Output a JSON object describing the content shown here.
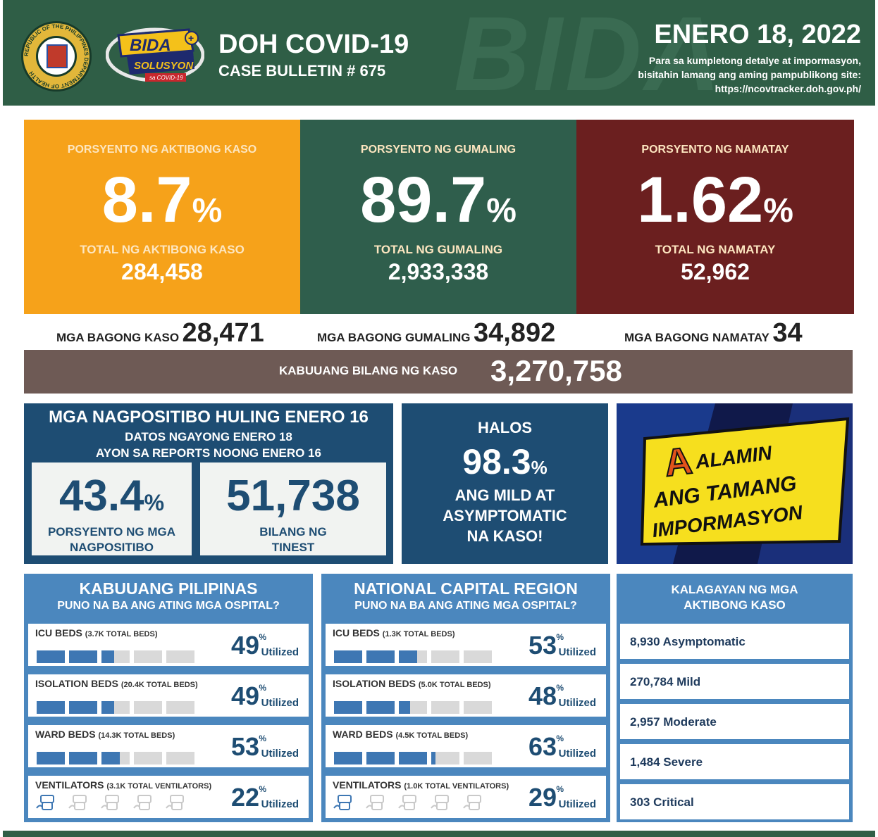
{
  "header": {
    "title": "DOH COVID-19",
    "subtitle": "CASE BULLETIN # 675",
    "date": "ENERO 18, 2022",
    "note_line1": "Para sa kumpletong detalye at impormasyon,",
    "note_line2": "bisitahin lamang ang aming pampublikong site:",
    "note_line3": "https://ncovtracker.doh.gov.ph/",
    "bg_text": "BIDA",
    "logo_bida": "BIDA",
    "logo_solusyon": "SOLUSYON",
    "logo_covid": "sa COVID-19",
    "seal_text": "REPUBLIC OF THE PHILIPPINES DEPARTMENT OF HEALTH"
  },
  "stats": [
    {
      "label": "PORSYENTO NG AKTIBONG KASO",
      "pct": "8.7",
      "pct_sign": "%",
      "total_label": "TOTAL NG AKTIBONG KASO",
      "total": "284,458",
      "color": "#f6a21a"
    },
    {
      "label": "PORSYENTO NG GUMALING",
      "pct": "89.7",
      "pct_sign": "%",
      "total_label": "TOTAL NG GUMALING",
      "total": "2,933,338",
      "color": "#2f5e4c"
    },
    {
      "label": "PORSYENTO NG NAMATAY",
      "pct": "1.62",
      "pct_sign": "%",
      "total_label": "TOTAL NG NAMATAY",
      "total": "52,962",
      "color": "#6b1f1f"
    }
  ],
  "new": [
    {
      "label": "MGA BAGONG KASO",
      "value": "28,471"
    },
    {
      "label": "MGA BAGONG GUMALING",
      "value": "34,892"
    },
    {
      "label": "MGA BAGONG NAMATAY",
      "value": "34"
    }
  ],
  "total": {
    "label": "KABUUANG BILANG NG KASO",
    "value": "3,270,758"
  },
  "positivity": {
    "title": "MGA NAGPOSITIBO HULING ENERO 16",
    "line1": "DATOS NGAYONG ENERO 18",
    "line2": "AYON SA REPORTS NOONG ENERO 16",
    "rate": "43.4",
    "rate_sign": "%",
    "rate_cap1": "PORSYENTO NG MGA",
    "rate_cap2": "NAGPOSITIBO",
    "tested": "51,738",
    "tested_cap1": "BILANG NG",
    "tested_cap2": "TINEST"
  },
  "halos": {
    "a": "HALOS",
    "value": "98.3",
    "sign": "%",
    "c1": "ANG MILD AT",
    "c2": "ASYMPTOMATIC",
    "c3": "NA KASO!"
  },
  "alamin": {
    "l1": "ALAMIN",
    "l2": "ANG TAMANG",
    "l3": "IMPORMASYON"
  },
  "sections": [
    {
      "title": "KABUUANG PILIPINAS",
      "sub": "PUNO NA BA ANG ATING MGA OSPITAL?",
      "rows": [
        {
          "name": "ICU BEDS",
          "detail": "(3.7K TOTAL BEDS)",
          "value": "49",
          "fraction": 0.49,
          "kind": "bar"
        },
        {
          "name": "ISOLATION BEDS",
          "detail": "(20.4K TOTAL BEDS)",
          "value": "49",
          "fraction": 0.49,
          "kind": "bar"
        },
        {
          "name": "WARD BEDS",
          "detail": "(14.3K TOTAL BEDS)",
          "value": "53",
          "fraction": 0.53,
          "kind": "bar"
        },
        {
          "name": "VENTILATORS",
          "detail": "(3.1K TOTAL VENTILATORS)",
          "value": "22",
          "fraction": 0.22,
          "kind": "vent"
        }
      ]
    },
    {
      "title": "NATIONAL CAPITAL REGION",
      "sub": "PUNO NA BA ANG ATING MGA OSPITAL?",
      "rows": [
        {
          "name": "ICU BEDS",
          "detail": "(1.3K TOTAL BEDS)",
          "value": "53",
          "fraction": 0.53,
          "kind": "bar"
        },
        {
          "name": "ISOLATION BEDS",
          "detail": "(5.0K TOTAL BEDS)",
          "value": "48",
          "fraction": 0.48,
          "kind": "bar"
        },
        {
          "name": "WARD BEDS",
          "detail": "(4.5K TOTAL BEDS)",
          "value": "63",
          "fraction": 0.63,
          "kind": "bar"
        },
        {
          "name": "VENTILATORS",
          "detail": "(1.0K TOTAL VENTILATORS)",
          "value": "29",
          "fraction": 0.29,
          "kind": "vent"
        }
      ]
    }
  ],
  "utilized_sign": "%",
  "utilized_label": "Utilized",
  "status": {
    "title1": "KALAGAYAN NG MGA",
    "title2": "AKTIBONG KASO",
    "rows": [
      "8,930 Asymptomatic",
      "270,784 Mild",
      "2,957 Moderate",
      "1,484 Severe",
      "303 Critical"
    ]
  }
}
